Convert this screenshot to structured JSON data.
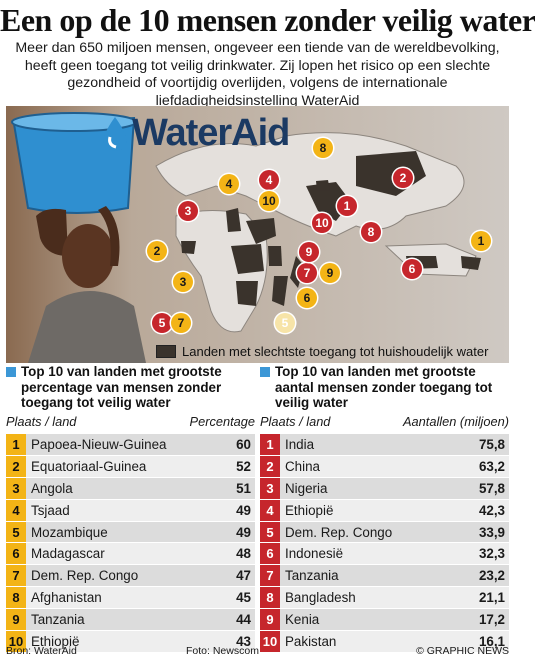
{
  "title": "Een op de 10 mensen zonder veilig water",
  "intro": "Meer dan 650 miljoen mensen, ongeveer een tiende van de wereldbevolking, heeft geen toegang tot veilig drinkwater. Zij lopen het risico op een slechte gezondheid of voortijdig overlijden, volgens de internationale liefdadigheidsinstelling WaterAid",
  "logo": "WaterAid",
  "legend": "Landen met slechtste toegang tot huishoudelijk water",
  "colors": {
    "rank_yellow": "#f3b416",
    "rank_red": "#c6262c",
    "legend_square": "#3c97d6",
    "highlight_land": "#3a332c"
  },
  "map_markers": [
    {
      "label": "1",
      "style": "yellow"
    },
    {
      "label": "2",
      "style": "red"
    },
    {
      "label": "2",
      "style": "yellow"
    },
    {
      "label": "3",
      "style": "yellow"
    },
    {
      "label": "3",
      "style": "red"
    },
    {
      "label": "4",
      "style": "yellow"
    },
    {
      "label": "4",
      "style": "red"
    },
    {
      "label": "5",
      "style": "red"
    },
    {
      "label": "5",
      "style": "pale"
    },
    {
      "label": "6",
      "style": "yellow"
    },
    {
      "label": "6",
      "style": "red"
    },
    {
      "label": "7",
      "style": "yellow"
    },
    {
      "label": "7",
      "style": "red"
    },
    {
      "label": "8",
      "style": "yellow"
    },
    {
      "label": "8",
      "style": "red"
    },
    {
      "label": "9",
      "style": "yellow"
    },
    {
      "label": "9",
      "style": "red"
    },
    {
      "label": "10",
      "style": "yellow"
    },
    {
      "label": "10",
      "style": "red"
    },
    {
      "label": "1",
      "style": "red"
    }
  ],
  "left": {
    "title": "Top 10 van landen met grootste percentage van mensen zonder toegang tot veilig water",
    "col_place": "Plaats / land",
    "col_value": "Percentage",
    "rows": [
      {
        "rank": "1",
        "country": "Papoea-Nieuw-Guinea",
        "value": "60"
      },
      {
        "rank": "2",
        "country": "Equatoriaal-Guinea",
        "value": "52"
      },
      {
        "rank": "3",
        "country": "Angola",
        "value": "51"
      },
      {
        "rank": "4",
        "country": "Tsjaad",
        "value": "49"
      },
      {
        "rank": "5",
        "country": "Mozambique",
        "value": "49"
      },
      {
        "rank": "6",
        "country": "Madagascar",
        "value": "48"
      },
      {
        "rank": "7",
        "country": "Dem. Rep. Congo",
        "value": "47"
      },
      {
        "rank": "8",
        "country": "Afghanistan",
        "value": "45"
      },
      {
        "rank": "9",
        "country": "Tanzania",
        "value": "44"
      },
      {
        "rank": "10",
        "country": "Ethiopië",
        "value": "43"
      }
    ]
  },
  "right": {
    "title": "Top 10 van landen met grootste aantal mensen zonder toegang tot veilig water",
    "col_place": "Plaats / land",
    "col_value": "Aantallen (miljoen)",
    "rows": [
      {
        "rank": "1",
        "country": "India",
        "value": "75,8"
      },
      {
        "rank": "2",
        "country": "China",
        "value": "63,2"
      },
      {
        "rank": "3",
        "country": "Nigeria",
        "value": "57,8"
      },
      {
        "rank": "4",
        "country": "Ethiopië",
        "value": "42,3"
      },
      {
        "rank": "5",
        "country": "Dem. Rep. Congo",
        "value": "33,9"
      },
      {
        "rank": "6",
        "country": "Indonesië",
        "value": "32,3"
      },
      {
        "rank": "7",
        "country": "Tanzania",
        "value": "23,2"
      },
      {
        "rank": "8",
        "country": "Bangladesh",
        "value": "21,1"
      },
      {
        "rank": "9",
        "country": "Kenia",
        "value": "17,2"
      },
      {
        "rank": "10",
        "country": "Pakistan",
        "value": "16,1"
      }
    ]
  },
  "footer": {
    "source": "Bron: WaterAid",
    "photo": "Foto: Newscom",
    "brand": "© GRAPHIC NEWS"
  }
}
